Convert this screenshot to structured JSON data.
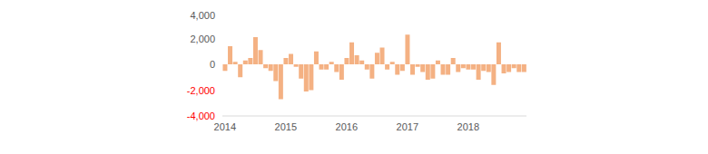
{
  "chart_data": {
    "type": "bar",
    "categories": [
      "2014",
      null,
      null,
      null,
      null,
      null,
      null,
      null,
      null,
      null,
      null,
      null,
      "2015",
      null,
      null,
      null,
      null,
      null,
      null,
      null,
      null,
      null,
      null,
      null,
      "2016",
      null,
      null,
      null,
      null,
      null,
      null,
      null,
      null,
      null,
      null,
      null,
      "2017",
      null,
      null,
      null,
      null,
      null,
      null,
      null,
      null,
      null,
      null,
      null,
      "2018",
      null,
      null,
      null,
      null,
      null,
      null,
      null,
      null,
      null,
      null,
      null
    ],
    "values": [
      -500,
      1400,
      200,
      -1000,
      300,
      500,
      2100,
      1100,
      -300,
      -500,
      -1300,
      -2700,
      500,
      800,
      -200,
      -1100,
      -2100,
      -2000,
      1000,
      -400,
      -400,
      200,
      -600,
      -1200,
      500,
      1700,
      700,
      300,
      -400,
      -1100,
      900,
      1300,
      -400,
      200,
      -800,
      -500,
      2300,
      -800,
      -200,
      -600,
      -1200,
      -1100,
      300,
      -800,
      -800,
      500,
      -600,
      -300,
      -400,
      -400,
      -1200,
      -500,
      -600,
      -1600,
      1700,
      -700,
      -600,
      -300,
      -600,
      -600
    ],
    "color": "#f4b183",
    "ylim": [
      -4000,
      4000
    ],
    "yticks": [
      {
        "value": -4000,
        "label": "-4,000"
      },
      {
        "value": -2000,
        "label": "-2,000"
      },
      0,
      {
        "value": 2000,
        "label": "2,000"
      },
      {
        "value": 4000,
        "label": "4,000"
      }
    ],
    "grid": false
  }
}
